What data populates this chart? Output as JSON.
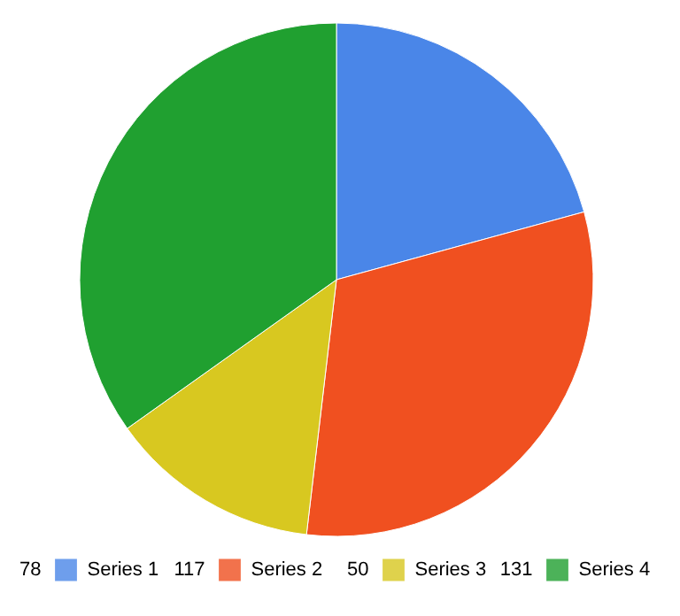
{
  "chart_data": {
    "type": "pie",
    "categories": [
      "Series 1",
      "Series 2",
      "Series 3",
      "Series 4"
    ],
    "values": [
      78,
      117,
      50,
      131
    ],
    "colors": [
      "#4a86e8",
      "#f05020",
      "#d8c820",
      "#20a030"
    ],
    "data_labels": true,
    "legend": "bottom"
  }
}
